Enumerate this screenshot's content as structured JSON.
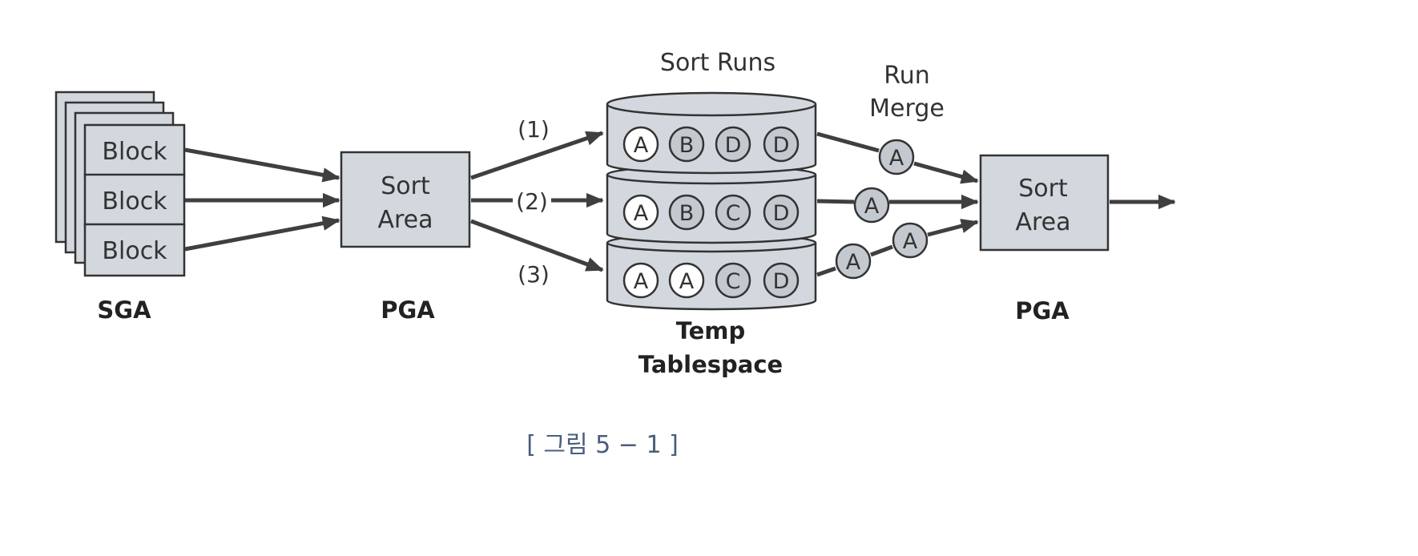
{
  "sga": {
    "blocks": [
      "Block",
      "Block",
      "Block"
    ],
    "label": "SGA"
  },
  "pga_left": {
    "box_lines": [
      "Sort",
      "Area"
    ],
    "label": "PGA"
  },
  "pga_right": {
    "box_lines": [
      "Sort",
      "Area"
    ],
    "label": "PGA"
  },
  "arrow_labels": [
    "(1)",
    "(2)",
    "(3)"
  ],
  "sort_runs": {
    "title": "Sort Runs",
    "runs": [
      [
        "A",
        "B",
        "D",
        "D"
      ],
      [
        "A",
        "B",
        "C",
        "D"
      ],
      [
        "A",
        "A",
        "C",
        "D"
      ]
    ],
    "label_lines": [
      "Temp",
      "Tablespace"
    ]
  },
  "run_merge": {
    "title_lines": [
      "Run",
      "Merge"
    ],
    "items": [
      "A",
      "A",
      "A",
      "A"
    ]
  },
  "caption": "[ 그림 5 − 1 ]",
  "colors": {
    "box_fill": "#d3d8de",
    "box_stroke": "#333333",
    "circle_white": "#ffffff",
    "circle_gray": "#c4c9cf",
    "arrow": "#3f3f3f",
    "caption": "#4a5e7c"
  }
}
